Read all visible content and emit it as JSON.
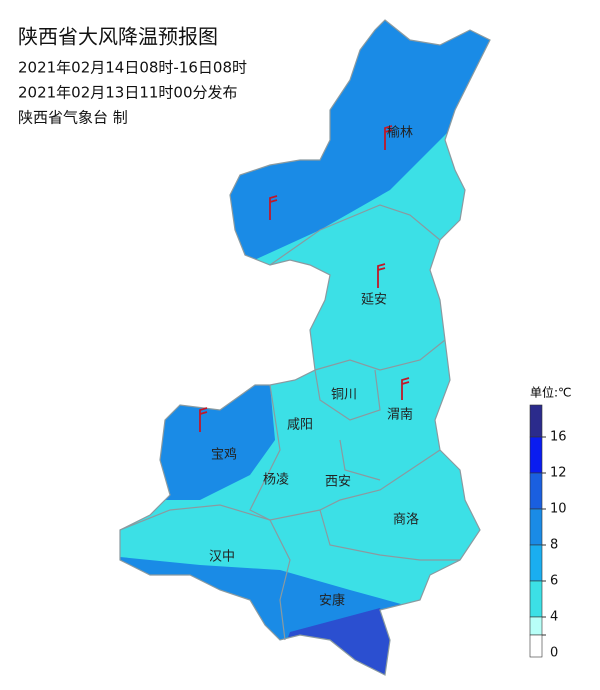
{
  "header": {
    "title": "陕西省大风降温预报图",
    "period": "2021年02月14日08时-16日08时",
    "issued": "2021年02月13日11时00分发布",
    "producer": "陕西省气象台 制"
  },
  "cities": [
    "榆林",
    "延安",
    "铜川",
    "渭南",
    "咸阳",
    "宝鸡",
    "杨凌",
    "西安",
    "商洛",
    "汉中",
    "安康"
  ],
  "legend": {
    "unit": "单位:℃",
    "ticks": [
      16,
      12,
      10,
      8,
      6,
      4,
      0
    ],
    "colors": [
      "#2b2b8c",
      "#0a1cf0",
      "#1a5fe0",
      "#1a8be6",
      "#1aaef0",
      "#3ce0e6",
      "#b8fff8",
      "#ffffff"
    ]
  }
}
